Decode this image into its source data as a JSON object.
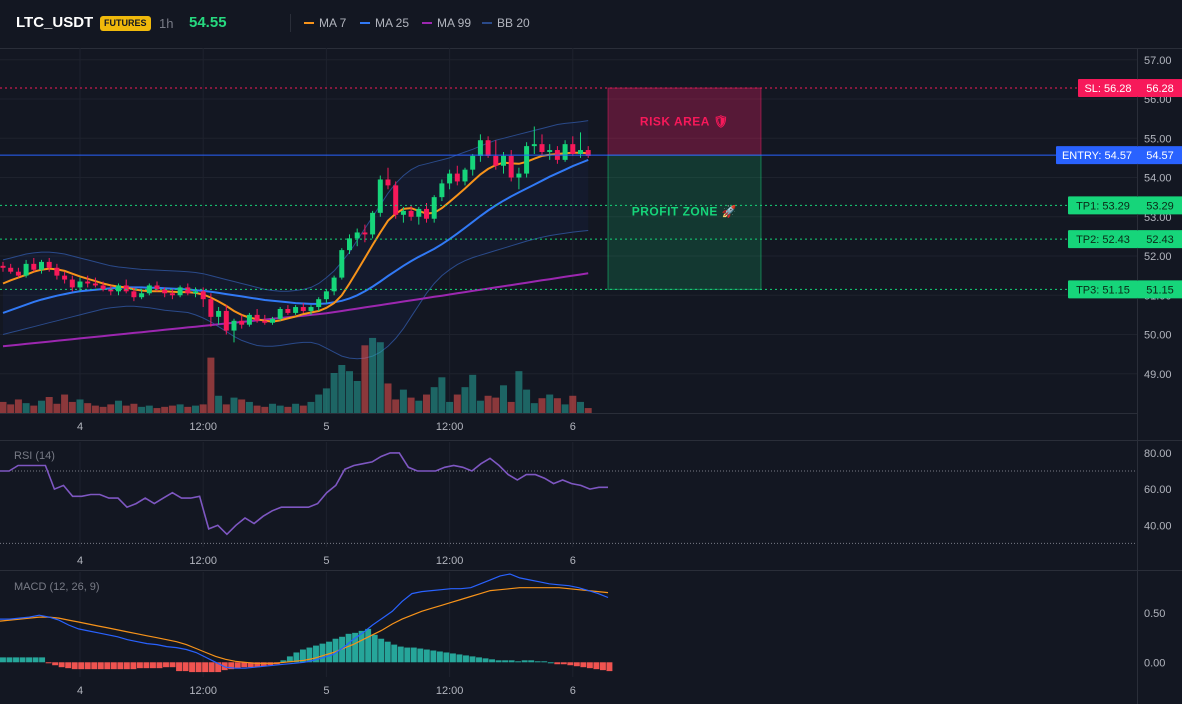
{
  "header": {
    "symbol": "LTC_USDT",
    "badge": "FUTURES",
    "timeframe": "1h",
    "price": "54.55",
    "legend": [
      {
        "label": "MA 7",
        "color": "#f7931a"
      },
      {
        "label": "MA 25",
        "color": "#3179f5"
      },
      {
        "label": "MA 99",
        "color": "#9c27b0"
      },
      {
        "label": "BB 20",
        "color": "#2a4a8a"
      }
    ]
  },
  "chart_data": [
    {
      "type": "candlestick",
      "title": "",
      "ylim": [
        48.0,
        57.3
      ],
      "price_ticks": [
        57.0,
        56.0,
        55.0,
        54.0,
        53.0,
        52.0,
        51.0,
        50.0,
        49.0
      ],
      "x_ticks": [
        {
          "label": "4",
          "i": 10
        },
        {
          "label": "12:00",
          "i": 26
        },
        {
          "label": "5",
          "i": 42
        },
        {
          "label": "12:00",
          "i": 58
        },
        {
          "label": "6",
          "i": 74
        }
      ],
      "candles": [
        [
          51.75,
          51.85,
          51.6,
          51.7
        ],
        [
          51.7,
          51.8,
          51.55,
          51.6
        ],
        [
          51.6,
          51.7,
          51.45,
          51.5
        ],
        [
          51.5,
          51.9,
          51.45,
          51.8
        ],
        [
          51.8,
          51.95,
          51.6,
          51.65
        ],
        [
          51.65,
          51.9,
          51.55,
          51.85
        ],
        [
          51.85,
          51.95,
          51.6,
          51.7
        ],
        [
          51.7,
          51.8,
          51.4,
          51.5
        ],
        [
          51.5,
          51.6,
          51.3,
          51.4
        ],
        [
          51.4,
          51.5,
          51.1,
          51.2
        ],
        [
          51.2,
          51.45,
          51.1,
          51.35
        ],
        [
          51.35,
          51.5,
          51.2,
          51.3
        ],
        [
          51.3,
          51.45,
          51.2,
          51.25
        ],
        [
          51.25,
          51.35,
          51.1,
          51.15
        ],
        [
          51.15,
          51.25,
          51.0,
          51.1
        ],
        [
          51.1,
          51.3,
          51.0,
          51.25
        ],
        [
          51.25,
          51.4,
          51.05,
          51.1
        ],
        [
          51.1,
          51.2,
          50.85,
          50.95
        ],
        [
          50.95,
          51.15,
          50.9,
          51.05
        ],
        [
          51.05,
          51.3,
          51.0,
          51.25
        ],
        [
          51.25,
          51.35,
          51.1,
          51.15
        ],
        [
          51.15,
          51.2,
          50.95,
          51.05
        ],
        [
          51.05,
          51.15,
          50.9,
          51.0
        ],
        [
          51.0,
          51.25,
          50.95,
          51.2
        ],
        [
          51.2,
          51.3,
          51.0,
          51.05
        ],
        [
          51.05,
          51.2,
          50.95,
          51.1
        ],
        [
          51.1,
          51.2,
          50.7,
          50.9
        ],
        [
          50.9,
          51.05,
          50.2,
          50.45
        ],
        [
          50.45,
          50.7,
          50.25,
          50.6
        ],
        [
          50.6,
          50.75,
          50.0,
          50.1
        ],
        [
          50.1,
          50.4,
          49.8,
          50.35
        ],
        [
          50.35,
          50.5,
          50.15,
          50.25
        ],
        [
          50.25,
          50.55,
          50.2,
          50.5
        ],
        [
          50.5,
          50.65,
          50.3,
          50.35
        ],
        [
          50.35,
          50.5,
          50.25,
          50.3
        ],
        [
          50.3,
          50.45,
          50.25,
          50.4
        ],
        [
          50.4,
          50.7,
          50.35,
          50.65
        ],
        [
          50.65,
          50.75,
          50.5,
          50.55
        ],
        [
          50.55,
          50.75,
          50.5,
          50.7
        ],
        [
          50.7,
          50.8,
          50.55,
          50.6
        ],
        [
          50.6,
          50.75,
          50.5,
          50.7
        ],
        [
          50.7,
          50.95,
          50.6,
          50.9
        ],
        [
          50.9,
          51.15,
          50.8,
          51.1
        ],
        [
          51.1,
          51.5,
          51.0,
          51.45
        ],
        [
          51.45,
          52.2,
          51.4,
          52.15
        ],
        [
          52.15,
          52.55,
          52.05,
          52.45
        ],
        [
          52.45,
          52.7,
          52.25,
          52.6
        ],
        [
          52.6,
          52.8,
          52.35,
          52.55
        ],
        [
          52.55,
          53.15,
          52.45,
          53.1
        ],
        [
          53.1,
          54.05,
          53.0,
          53.95
        ],
        [
          53.95,
          54.25,
          53.7,
          53.8
        ],
        [
          53.8,
          53.9,
          52.95,
          53.05
        ],
        [
          53.05,
          53.25,
          52.85,
          53.15
        ],
        [
          53.15,
          53.3,
          52.9,
          53.0
        ],
        [
          53.0,
          53.25,
          52.8,
          53.2
        ],
        [
          53.2,
          53.35,
          52.85,
          52.95
        ],
        [
          52.95,
          53.55,
          52.85,
          53.5
        ],
        [
          53.5,
          53.95,
          53.4,
          53.85
        ],
        [
          53.85,
          54.2,
          53.7,
          54.1
        ],
        [
          54.1,
          54.3,
          53.8,
          53.9
        ],
        [
          53.9,
          54.25,
          53.8,
          54.2
        ],
        [
          54.2,
          54.6,
          54.05,
          54.55
        ],
        [
          54.55,
          55.1,
          54.4,
          54.95
        ],
        [
          54.95,
          55.05,
          54.5,
          54.55
        ],
        [
          54.55,
          54.95,
          54.2,
          54.3
        ],
        [
          54.3,
          54.65,
          54.1,
          54.55
        ],
        [
          54.55,
          54.7,
          53.9,
          54.0
        ],
        [
          54.0,
          54.25,
          53.7,
          54.1
        ],
        [
          54.1,
          54.9,
          54.0,
          54.8
        ],
        [
          54.8,
          55.3,
          54.6,
          54.85
        ],
        [
          54.85,
          55.1,
          54.55,
          54.65
        ],
        [
          54.65,
          54.85,
          54.45,
          54.7
        ],
        [
          54.7,
          54.8,
          54.35,
          54.45
        ],
        [
          54.45,
          54.95,
          54.4,
          54.85
        ],
        [
          54.85,
          55.05,
          54.55,
          54.6
        ],
        [
          54.6,
          55.15,
          54.5,
          54.7
        ],
        [
          54.7,
          54.8,
          54.5,
          54.55
        ]
      ],
      "ma7": [
        51.3,
        51.38,
        51.45,
        51.52,
        51.6,
        51.65,
        51.68,
        51.66,
        51.62,
        51.55,
        51.48,
        51.42,
        51.36,
        51.3,
        51.25,
        51.22,
        51.2,
        51.15,
        51.12,
        51.1,
        51.1,
        51.1,
        51.09,
        51.08,
        51.08,
        51.06,
        51.02,
        50.94,
        50.84,
        50.73,
        50.6,
        50.5,
        50.43,
        50.39,
        50.35,
        50.33,
        50.36,
        50.41,
        50.46,
        50.52,
        50.56,
        50.6,
        50.68,
        50.8,
        51.0,
        51.3,
        51.62,
        51.95,
        52.28,
        52.6,
        52.9,
        53.08,
        53.2,
        53.22,
        53.15,
        53.08,
        53.1,
        53.22,
        53.38,
        53.55,
        53.72,
        53.9,
        54.08,
        54.22,
        54.32,
        54.38,
        54.36,
        54.35,
        54.4,
        54.48,
        54.55,
        54.58,
        54.6,
        54.62,
        54.63,
        54.63,
        54.62
      ],
      "ma25": [
        50.55,
        50.62,
        50.69,
        50.76,
        50.83,
        50.89,
        50.94,
        50.99,
        51.03,
        51.07,
        51.1,
        51.12,
        51.14,
        51.16,
        51.18,
        51.19,
        51.2,
        51.2,
        51.2,
        51.19,
        51.19,
        51.18,
        51.17,
        51.16,
        51.15,
        51.13,
        51.11,
        51.09,
        51.06,
        51.03,
        51.0,
        50.97,
        50.94,
        50.91,
        50.88,
        50.86,
        50.84,
        50.82,
        50.8,
        50.79,
        50.78,
        50.78,
        50.79,
        50.82,
        50.86,
        50.92,
        51.0,
        51.1,
        51.22,
        51.35,
        51.49,
        51.62,
        51.75,
        51.87,
        51.98,
        52.08,
        52.18,
        52.3,
        52.43,
        52.57,
        52.72,
        52.87,
        53.02,
        53.16,
        53.29,
        53.41,
        53.52,
        53.62,
        53.72,
        53.82,
        53.92,
        54.02,
        54.11,
        54.2,
        54.29,
        54.37,
        54.45
      ],
      "ma99": [
        49.7,
        49.72,
        49.74,
        49.76,
        49.78,
        49.8,
        49.82,
        49.84,
        49.86,
        49.88,
        49.9,
        49.92,
        49.94,
        49.96,
        49.98,
        50.0,
        50.02,
        50.04,
        50.06,
        50.08,
        50.1,
        50.12,
        50.14,
        50.16,
        50.18,
        50.2,
        50.22,
        50.24,
        50.26,
        50.28,
        50.3,
        50.32,
        50.34,
        50.36,
        50.38,
        50.4,
        50.42,
        50.44,
        50.46,
        50.48,
        50.5,
        50.52,
        50.54,
        50.57,
        50.6,
        50.63,
        50.66,
        50.69,
        50.72,
        50.75,
        50.78,
        50.81,
        50.84,
        50.87,
        50.9,
        50.93,
        50.96,
        50.99,
        51.02,
        51.05,
        51.08,
        51.11,
        51.14,
        51.17,
        51.2,
        51.23,
        51.26,
        51.29,
        51.32,
        51.35,
        51.38,
        51.41,
        51.44,
        51.47,
        51.5,
        51.53,
        51.56
      ],
      "bb_upper": [
        51.9,
        51.95,
        52.0,
        52.05,
        52.08,
        52.1,
        52.1,
        52.08,
        52.05,
        52.0,
        51.95,
        51.9,
        51.85,
        51.8,
        51.75,
        51.72,
        51.7,
        51.68,
        51.66,
        51.65,
        51.64,
        51.63,
        51.62,
        51.61,
        51.6,
        51.58,
        51.55,
        51.5,
        51.45,
        51.4,
        51.35,
        51.3,
        51.25,
        51.2,
        51.15,
        51.12,
        51.1,
        51.1,
        51.12,
        51.15,
        51.2,
        51.3,
        51.45,
        51.62,
        51.85,
        52.1,
        52.4,
        52.7,
        53.0,
        53.3,
        53.6,
        53.85,
        54.05,
        54.2,
        54.3,
        54.35,
        54.4,
        54.45,
        54.5,
        54.58,
        54.65,
        54.72,
        54.8,
        54.88,
        54.95,
        55.0,
        55.05,
        55.1,
        55.15,
        55.2,
        55.25,
        55.3,
        55.35,
        55.38,
        55.4,
        55.42,
        55.45
      ],
      "bb_lower": [
        50.0,
        50.05,
        50.1,
        50.15,
        50.2,
        50.25,
        50.3,
        50.35,
        50.4,
        50.45,
        50.5,
        50.55,
        50.6,
        50.65,
        50.68,
        50.7,
        50.72,
        50.72,
        50.7,
        50.68,
        50.65,
        50.62,
        50.6,
        50.58,
        50.56,
        50.5,
        50.42,
        50.32,
        50.2,
        50.08,
        49.95,
        49.85,
        49.78,
        49.72,
        49.7,
        49.7,
        49.72,
        49.75,
        49.78,
        49.8,
        49.8,
        49.75,
        49.65,
        49.55,
        49.45,
        49.4,
        49.38,
        49.4,
        49.45,
        49.55,
        49.7,
        49.9,
        50.15,
        50.45,
        50.75,
        51.05,
        51.3,
        51.5,
        51.65,
        51.78,
        51.88,
        51.96,
        52.02,
        52.08,
        52.14,
        52.2,
        52.26,
        52.32,
        52.38,
        52.43,
        52.48,
        52.52,
        52.55,
        52.58,
        52.61,
        52.63,
        52.65
      ],
      "volume": [
        18,
        14,
        22,
        16,
        12,
        20,
        26,
        15,
        30,
        18,
        22,
        16,
        12,
        10,
        14,
        20,
        12,
        15,
        10,
        12,
        8,
        10,
        12,
        14,
        10,
        12,
        14,
        90,
        28,
        14,
        25,
        22,
        18,
        12,
        10,
        15,
        12,
        10,
        15,
        12,
        18,
        30,
        40,
        65,
        78,
        68,
        52,
        110,
        122,
        115,
        48,
        22,
        38,
        25,
        20,
        30,
        42,
        58,
        18,
        30,
        42,
        62,
        20,
        28,
        25,
        45,
        18,
        68,
        38,
        16,
        24,
        30,
        24,
        14,
        28,
        18,
        8
      ]
    },
    {
      "type": "line",
      "title": "RSI (14)",
      "ylim": [
        28,
        86
      ],
      "y_ticks": [
        80.0,
        60.0,
        40.0
      ],
      "reference_lines": [
        70,
        30
      ],
      "values": [
        70,
        70,
        73,
        73,
        73,
        73,
        60,
        62,
        56,
        56,
        57,
        57,
        55,
        55,
        50,
        52,
        55,
        52,
        55,
        58,
        55,
        55,
        56,
        38,
        40,
        35,
        40,
        44,
        41,
        45,
        48,
        50,
        50,
        50,
        50,
        52,
        58,
        62,
        71,
        73,
        74,
        75,
        78,
        80,
        80,
        72,
        70,
        70,
        70,
        72,
        73,
        72,
        70,
        74,
        77,
        73,
        68,
        65,
        68,
        68,
        66,
        63,
        65,
        63,
        62,
        60,
        61,
        61
      ]
    },
    {
      "type": "line",
      "title": "MACD (12, 26, 9)",
      "ylim": [
        -0.15,
        0.92
      ],
      "y_ticks": [
        0.5,
        0.0
      ],
      "macd": [
        0.44,
        0.44,
        0.45,
        0.46,
        0.48,
        0.46,
        0.43,
        0.38,
        0.34,
        0.32,
        0.3,
        0.28,
        0.26,
        0.23,
        0.21,
        0.19,
        0.18,
        0.16,
        0.15,
        0.13,
        0.1,
        0.05,
        0.0,
        -0.05,
        -0.06,
        -0.06,
        -0.05,
        -0.04,
        -0.03,
        -0.02,
        -0.01,
        0.0,
        0.02,
        0.05,
        0.08,
        0.15,
        0.23,
        0.3,
        0.38,
        0.45,
        0.52,
        0.62,
        0.7,
        0.72,
        0.73,
        0.74,
        0.75,
        0.75,
        0.76,
        0.8,
        0.84,
        0.88,
        0.9,
        0.86,
        0.84,
        0.82,
        0.8,
        0.79,
        0.78,
        0.76,
        0.73,
        0.7,
        0.66
      ],
      "signal": [
        0.42,
        0.43,
        0.44,
        0.45,
        0.46,
        0.46,
        0.45,
        0.43,
        0.41,
        0.39,
        0.37,
        0.35,
        0.33,
        0.31,
        0.29,
        0.27,
        0.25,
        0.23,
        0.21,
        0.18,
        0.14,
        0.1,
        0.06,
        0.03,
        0.01,
        0.0,
        -0.01,
        -0.01,
        -0.01,
        0.0,
        0.01,
        0.02,
        0.04,
        0.07,
        0.1,
        0.14,
        0.18,
        0.23,
        0.28,
        0.33,
        0.39,
        0.44,
        0.48,
        0.52,
        0.55,
        0.58,
        0.61,
        0.64,
        0.67,
        0.7,
        0.73,
        0.74,
        0.75,
        0.76,
        0.76,
        0.76,
        0.76,
        0.76,
        0.75,
        0.74,
        0.73,
        0.72,
        0.71
      ],
      "histogram": [
        0.05,
        0.05,
        0.05,
        0.05,
        0.05,
        0.05,
        0.05,
        -0.01,
        -0.03,
        -0.05,
        -0.06,
        -0.07,
        -0.07,
        -0.07,
        -0.07,
        -0.07,
        -0.07,
        -0.07,
        -0.07,
        -0.07,
        -0.07,
        -0.06,
        -0.06,
        -0.06,
        -0.06,
        -0.05,
        -0.05,
        -0.09,
        -0.09,
        -0.1,
        -0.1,
        -0.1,
        -0.1,
        -0.1,
        -0.08,
        -0.07,
        -0.06,
        -0.05,
        -0.05,
        -0.05,
        -0.04,
        -0.03,
        -0.02,
        0.02,
        0.06,
        0.1,
        0.13,
        0.15,
        0.17,
        0.19,
        0.21,
        0.24,
        0.26,
        0.29,
        0.3,
        0.32,
        0.34,
        0.28,
        0.24,
        0.21,
        0.18,
        0.16,
        0.15,
        0.15,
        0.14,
        0.13,
        0.12,
        0.11,
        0.1,
        0.09,
        0.08,
        0.07,
        0.06,
        0.05,
        0.04,
        0.03,
        0.02,
        0.02,
        0.02,
        0.01,
        0.02,
        0.02,
        0.01,
        0.01,
        0.0,
        -0.02,
        -0.02,
        -0.03,
        -0.04,
        -0.05,
        -0.06,
        -0.07,
        -0.08,
        -0.09
      ]
    }
  ],
  "trade": {
    "sl": {
      "price": 56.28,
      "label": "SL: 56.28",
      "value": "56.28",
      "color": "#f7195a"
    },
    "entry": {
      "price": 54.57,
      "label": "ENTRY: 54.57",
      "value": "54.57",
      "color": "#2962ff"
    },
    "tp1": {
      "price": 53.29,
      "label": "TP1: 53.29",
      "value": "53.29",
      "color": "#16d57a"
    },
    "tp2": {
      "price": 52.43,
      "label": "TP2: 52.43",
      "value": "52.43",
      "color": "#16d57a"
    },
    "tp3": {
      "price": 51.15,
      "label": "TP3: 51.15",
      "value": "51.15",
      "color": "#16d57a"
    },
    "risk_label": "RISK AREA 🛡",
    "profit_label": "PROFIT ZONE 🚀"
  }
}
